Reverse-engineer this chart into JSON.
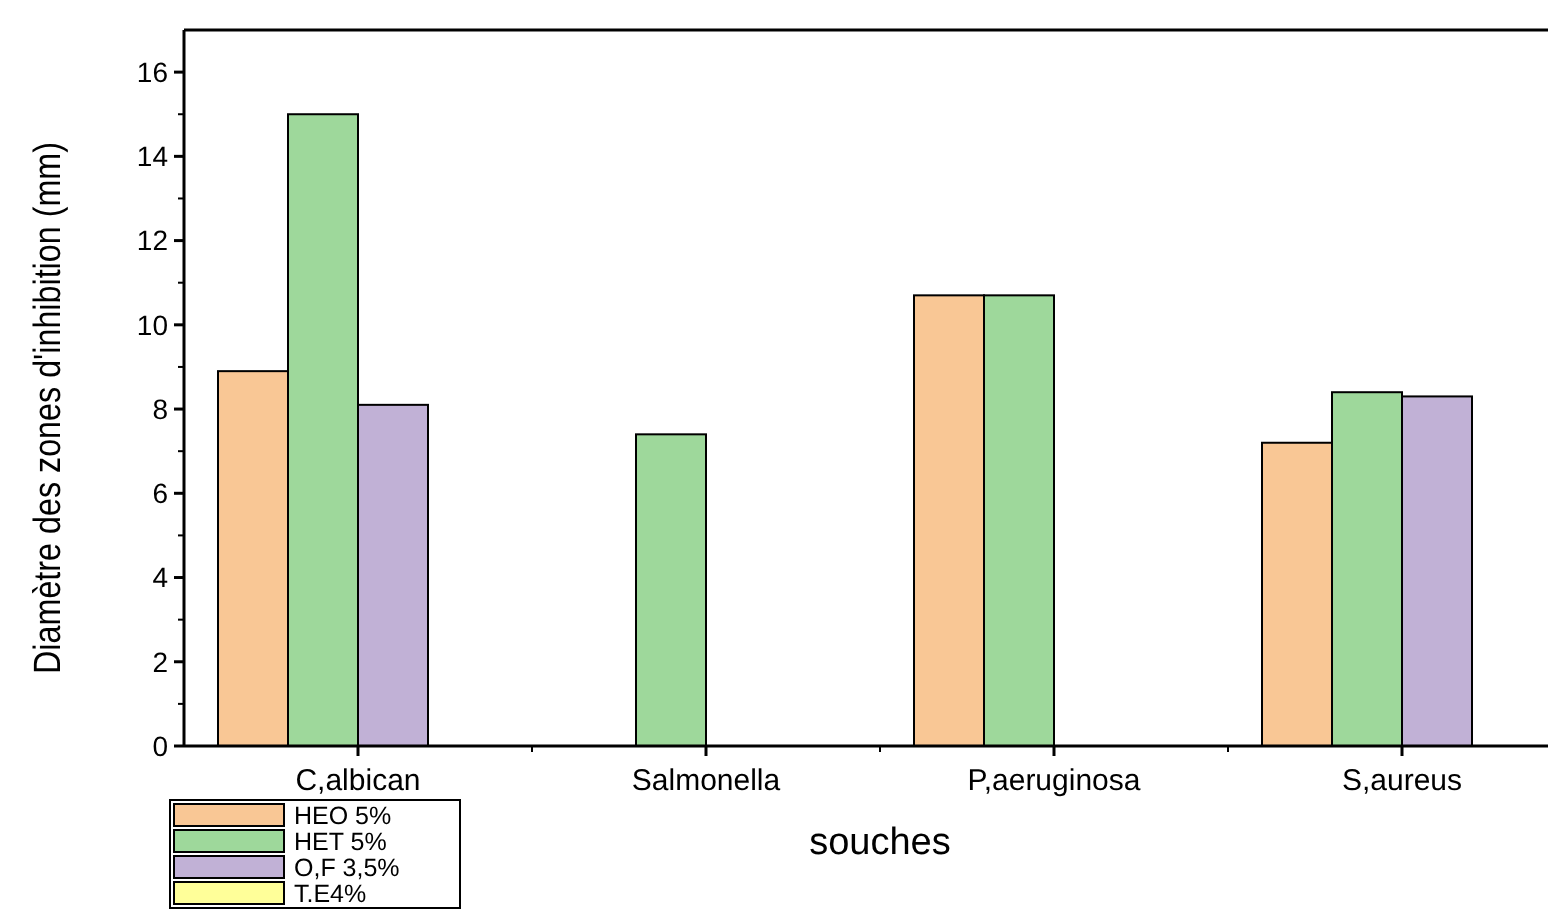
{
  "chart_data": {
    "type": "bar",
    "xlabel": "souches",
    "ylabel": "Diamètre des zones d'inhibition (mm)",
    "categories": [
      "C,albican",
      "Salmonella",
      "P,aeruginosa",
      "S,aureus"
    ],
    "series": [
      {
        "name": "HEO 5%",
        "color": "#f9c795",
        "values": [
          8.9,
          null,
          10.7,
          7.2
        ]
      },
      {
        "name": "HET 5%",
        "color": "#9ed89b",
        "values": [
          15.0,
          7.4,
          10.7,
          8.4
        ]
      },
      {
        "name": "O,F 3,5%",
        "color": "#c1b1d6",
        "values": [
          8.1,
          null,
          null,
          8.3
        ]
      },
      {
        "name": "T.E4%",
        "color": "#ffff99",
        "values": [
          null,
          null,
          null,
          null
        ]
      }
    ],
    "ylim": [
      0,
      17
    ],
    "yticks": [
      0,
      2,
      4,
      6,
      8,
      10,
      12,
      14,
      16
    ],
    "grid": false,
    "legend": "bottom left"
  }
}
